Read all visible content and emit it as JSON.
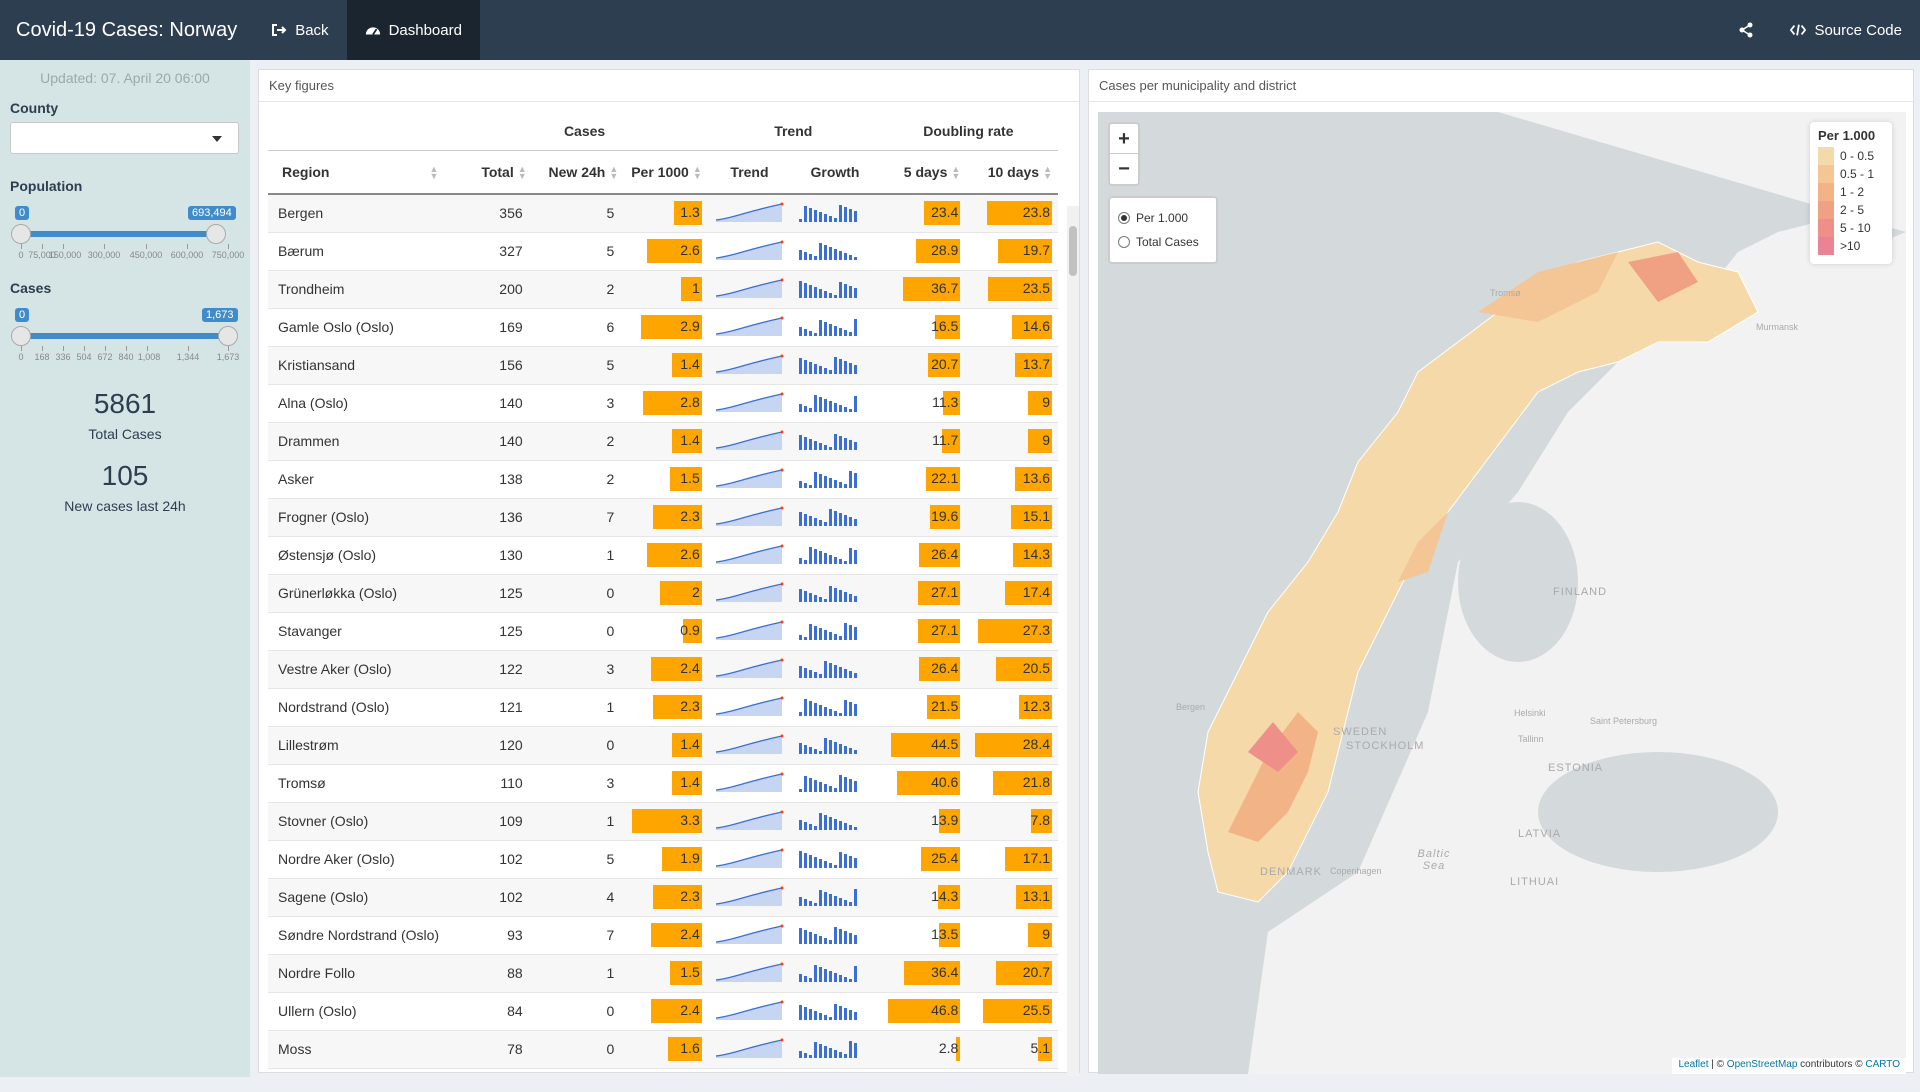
{
  "nav": {
    "title": "Covid-19 Cases: Norway",
    "back_label": "Back",
    "dashboard_label": "Dashboard",
    "source_label": "Source Code"
  },
  "sidebar": {
    "updated": "Updated: 07. April 20 06:00",
    "county_label": "County",
    "county_value": "",
    "population": {
      "label": "Population",
      "min_value": "0",
      "max_value": "693,494",
      "ticks": [
        "0",
        "75,000",
        "150,000",
        "300,000",
        "450,000",
        "600,000",
        "750,000"
      ]
    },
    "cases": {
      "label": "Cases",
      "min_value": "0",
      "max_value": "1,673",
      "ticks": [
        "0",
        "168",
        "336",
        "504",
        "672",
        "840",
        "1,008",
        "1,344",
        "1,673"
      ]
    },
    "total_cases": "5861",
    "total_cases_label": "Total Cases",
    "new_cases": "105",
    "new_cases_label": "New cases last 24h"
  },
  "table_panel": {
    "title": "Key figures",
    "group_headers": {
      "cases": "Cases",
      "trend": "Trend",
      "doubling": "Doubling rate"
    },
    "columns": {
      "region": "Region",
      "total": "Total",
      "new24h": "New 24h",
      "per1000": "Per 1000",
      "trend": "Trend",
      "growth": "Growth",
      "d5": "5 days",
      "d10": "10 days"
    },
    "rows": [
      {
        "region": "Bergen",
        "total": "356",
        "new24h": "5",
        "per1000": "1.3",
        "d5": "23.4",
        "d10": "23.8"
      },
      {
        "region": "Bærum",
        "total": "327",
        "new24h": "5",
        "per1000": "2.6",
        "d5": "28.9",
        "d10": "19.7"
      },
      {
        "region": "Trondheim",
        "total": "200",
        "new24h": "2",
        "per1000": "1",
        "d5": "36.7",
        "d10": "23.5"
      },
      {
        "region": "Gamle Oslo (Oslo)",
        "total": "169",
        "new24h": "6",
        "per1000": "2.9",
        "d5": "16.5",
        "d10": "14.6"
      },
      {
        "region": "Kristiansand",
        "total": "156",
        "new24h": "5",
        "per1000": "1.4",
        "d5": "20.7",
        "d10": "13.7"
      },
      {
        "region": "Alna (Oslo)",
        "total": "140",
        "new24h": "3",
        "per1000": "2.8",
        "d5": "11.3",
        "d10": "9"
      },
      {
        "region": "Drammen",
        "total": "140",
        "new24h": "2",
        "per1000": "1.4",
        "d5": "11.7",
        "d10": "9"
      },
      {
        "region": "Asker",
        "total": "138",
        "new24h": "2",
        "per1000": "1.5",
        "d5": "22.1",
        "d10": "13.6"
      },
      {
        "region": "Frogner (Oslo)",
        "total": "136",
        "new24h": "7",
        "per1000": "2.3",
        "d5": "19.6",
        "d10": "15.1"
      },
      {
        "region": "Østensjø (Oslo)",
        "total": "130",
        "new24h": "1",
        "per1000": "2.6",
        "d5": "26.4",
        "d10": "14.3"
      },
      {
        "region": "Grünerløkka (Oslo)",
        "total": "125",
        "new24h": "0",
        "per1000": "2",
        "d5": "27.1",
        "d10": "17.4"
      },
      {
        "region": "Stavanger",
        "total": "125",
        "new24h": "0",
        "per1000": "0.9",
        "d5": "27.1",
        "d10": "27.3"
      },
      {
        "region": "Vestre Aker (Oslo)",
        "total": "122",
        "new24h": "3",
        "per1000": "2.4",
        "d5": "26.4",
        "d10": "20.5"
      },
      {
        "region": "Nordstrand (Oslo)",
        "total": "121",
        "new24h": "1",
        "per1000": "2.3",
        "d5": "21.5",
        "d10": "12.3"
      },
      {
        "region": "Lillestrøm",
        "total": "120",
        "new24h": "0",
        "per1000": "1.4",
        "d5": "44.5",
        "d10": "28.4"
      },
      {
        "region": "Tromsø",
        "total": "110",
        "new24h": "3",
        "per1000": "1.4",
        "d5": "40.6",
        "d10": "21.8"
      },
      {
        "region": "Stovner (Oslo)",
        "total": "109",
        "new24h": "1",
        "per1000": "3.3",
        "d5": "13.9",
        "d10": "7.8"
      },
      {
        "region": "Nordre Aker (Oslo)",
        "total": "102",
        "new24h": "5",
        "per1000": "1.9",
        "d5": "25.4",
        "d10": "17.1"
      },
      {
        "region": "Sagene (Oslo)",
        "total": "102",
        "new24h": "4",
        "per1000": "2.3",
        "d5": "14.3",
        "d10": "13.1"
      },
      {
        "region": "Søndre Nordstrand (Oslo)",
        "total": "93",
        "new24h": "7",
        "per1000": "2.4",
        "d5": "13.5",
        "d10": "9"
      },
      {
        "region": "Nordre Follo",
        "total": "88",
        "new24h": "1",
        "per1000": "1.5",
        "d5": "36.4",
        "d10": "20.7"
      },
      {
        "region": "Ullern (Oslo)",
        "total": "84",
        "new24h": "0",
        "per1000": "2.4",
        "d5": "46.8",
        "d10": "25.5"
      },
      {
        "region": "Moss",
        "total": "78",
        "new24h": "0",
        "per1000": "1.6",
        "d5": "2.8",
        "d10": "5.1"
      }
    ]
  },
  "map_panel": {
    "title": "Cases per municipality and district",
    "zoom_in": "+",
    "zoom_out": "−",
    "radio_per1000": "Per 1.000",
    "radio_total": "Total Cases",
    "legend_title": "Per 1.000",
    "legend": [
      {
        "label": "0 - 0.5",
        "color": "#f6d9a8"
      },
      {
        "label": "0.5 - 1",
        "color": "#f4c696"
      },
      {
        "label": "1 - 2",
        "color": "#f2b487"
      },
      {
        "label": "2 - 5",
        "color": "#f0a183"
      },
      {
        "label": "5 - 10",
        "color": "#ee9089"
      },
      {
        "label": ">10",
        "color": "#ec8295"
      }
    ],
    "place_labels": {
      "finland": "FINLAND",
      "sweden": "SWEDEN",
      "stockholm": "STOCKHOLM",
      "estonia": "ESTONIA",
      "latvia": "LATVIA",
      "denmark": "DENMARK",
      "copenhagen": "Copenhagen",
      "helsinki": "Helsinki",
      "tallinn": "Tallinn",
      "stpetersburg": "Saint Petersburg",
      "murmansk": "Murmansk",
      "baltic": "Baltic Sea",
      "bergen": "Bergen",
      "tromso": "Tromsø",
      "lithuania": "LITHUAI"
    },
    "attribution": {
      "leaflet": "Leaflet",
      "sep1": " | © ",
      "osm": "OpenStreetMap",
      "mid": " contributors © ",
      "carto": "CARTO"
    }
  },
  "colors": {
    "navbar": "#2c3e50",
    "sidebar": "#d5e5e6",
    "bar": "#ffa500",
    "accent": "#428bca",
    "sparkline": "#3b6fd6"
  }
}
